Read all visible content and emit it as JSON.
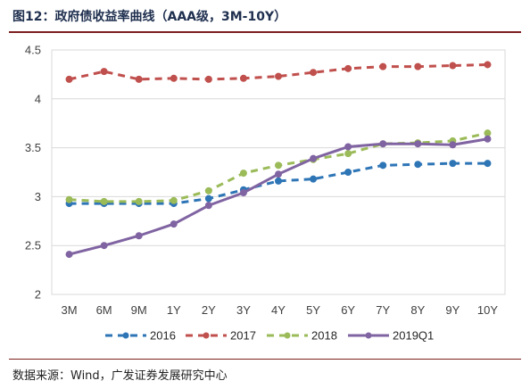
{
  "figure": {
    "title": "图12：政府债收益率曲线（AAA级，3M-10Y）",
    "source": "数据来源：Wind，广发证券发展研究中心"
  },
  "chart_data": {
    "type": "line",
    "title": "",
    "xlabel": "",
    "ylabel": "",
    "categories": [
      "3M",
      "6M",
      "9M",
      "1Y",
      "2Y",
      "3Y",
      "4Y",
      "5Y",
      "6Y",
      "7Y",
      "8Y",
      "9Y",
      "10Y"
    ],
    "ylim": [
      2,
      4.5
    ],
    "yticks": [
      2,
      2.5,
      3,
      3.5,
      4,
      4.5
    ],
    "ytick_labels": [
      "2",
      "2.5",
      "3",
      "3.5",
      "4",
      "4.5"
    ],
    "grid": true,
    "legend_position": "bottom",
    "series": [
      {
        "name": "2016",
        "style": "dashed",
        "marker": "circle",
        "color": "#2e75b6",
        "values": [
          2.93,
          2.93,
          2.93,
          2.93,
          2.98,
          3.07,
          3.16,
          3.18,
          3.25,
          3.32,
          3.33,
          3.34,
          3.34
        ]
      },
      {
        "name": "2017",
        "style": "dashed",
        "marker": "circle",
        "color": "#c0504d",
        "values": [
          4.2,
          4.28,
          4.2,
          4.21,
          4.2,
          4.21,
          4.23,
          4.27,
          4.31,
          4.33,
          4.33,
          4.34,
          4.35
        ]
      },
      {
        "name": "2018",
        "style": "dashed",
        "marker": "circle",
        "color": "#9bbb59",
        "values": [
          2.97,
          2.95,
          2.95,
          2.96,
          3.06,
          3.24,
          3.32,
          3.38,
          3.44,
          3.54,
          3.55,
          3.57,
          3.65
        ]
      },
      {
        "name": "2019Q1",
        "style": "solid",
        "marker": "circle",
        "color": "#8064a2",
        "values": [
          2.41,
          2.5,
          2.6,
          2.72,
          2.91,
          3.04,
          3.23,
          3.39,
          3.51,
          3.54,
          3.54,
          3.53,
          3.59
        ]
      }
    ]
  }
}
